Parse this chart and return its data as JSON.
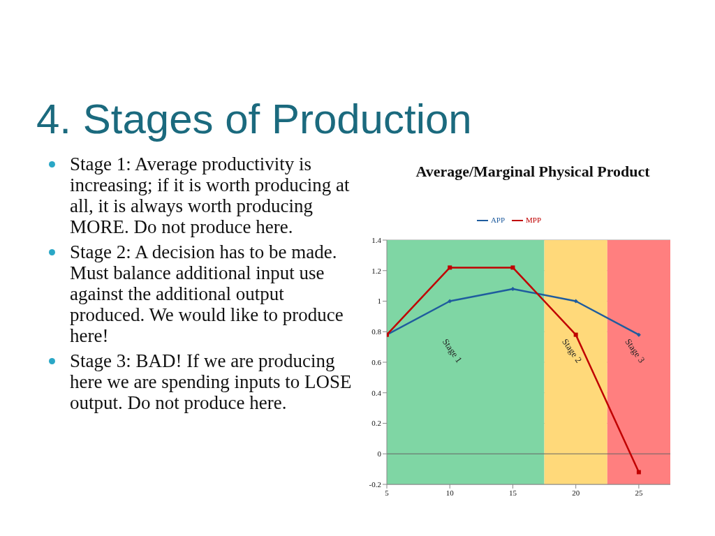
{
  "chart_data": {
    "type": "line",
    "title": "Average/Marginal Physical Product",
    "x": [
      5,
      10,
      15,
      20,
      25
    ],
    "series": [
      {
        "name": "APP",
        "color": "#1f5c9e",
        "marker": "diamond",
        "values": [
          0.78,
          1,
          1.08,
          1,
          0.78
        ]
      },
      {
        "name": "MPP",
        "color": "#c00000",
        "marker": "square",
        "values": [
          0.78,
          1.22,
          1.22,
          0.78,
          -0.12
        ]
      }
    ],
    "xlim": [
      5,
      27.5
    ],
    "xticks": [
      5,
      10,
      15,
      20,
      25
    ],
    "ylim": [
      -0.2,
      1.4
    ],
    "yticks": [
      -0.2,
      0,
      0.2,
      0.4,
      0.6,
      0.8,
      1,
      1.2,
      1.4
    ],
    "grid": "y",
    "legend": "top",
    "bands": [
      {
        "axis": "x",
        "from": 5,
        "to": 17.5,
        "label": "Stage 1",
        "color": "#7fd6a4"
      },
      {
        "axis": "x",
        "from": 17.5,
        "to": 22.5,
        "label": "Stage 2",
        "color": "#ffd97a"
      },
      {
        "axis": "x",
        "from": 22.5,
        "to": 27.5,
        "label": "Stage 3",
        "color": "#ff7f7f"
      }
    ],
    "annotations": [
      "4. Stages of Production",
      "Stage 1: Average productivity is increasing; if it is worth producing at all, it is always worth producing MORE.  Do not produce here.",
      "Stage 2: A decision has to be made.  Must balance additional input use against the additional output produced.  We would like to produce here!",
      "Stage 3: BAD!  If we are producing here we are spending inputs to LOSE output.  Do not produce here."
    ]
  }
}
